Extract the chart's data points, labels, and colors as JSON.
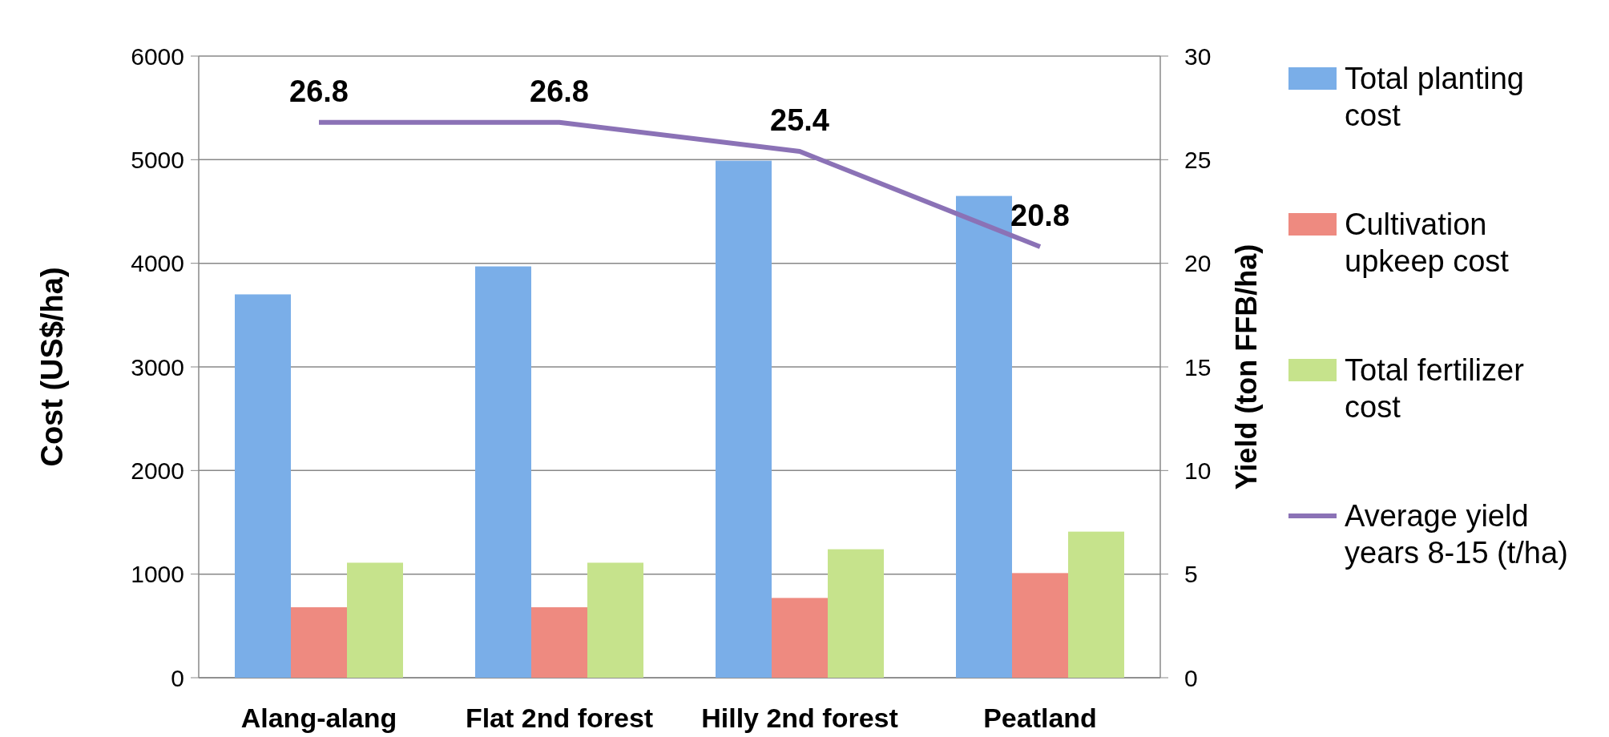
{
  "chart_data": {
    "type": "bar",
    "categories": [
      "Alang-alang",
      "Flat 2nd forest",
      "Hilly 2nd forest",
      "Peatland"
    ],
    "ylabel": "Cost (US$/ha)",
    "y2label": "Yield (ton FFB/ha)",
    "ylim": [
      0,
      6000
    ],
    "yticks": [
      0,
      1000,
      2000,
      3000,
      4000,
      5000,
      6000
    ],
    "y2lim": [
      0,
      30
    ],
    "y2ticks": [
      0,
      5,
      10,
      15,
      20,
      25,
      30
    ],
    "grid": "y",
    "legend": "right",
    "series": [
      {
        "name": "Total planting cost",
        "color": "#7aaee8",
        "values": [
          3700,
          3970,
          4990,
          4650
        ]
      },
      {
        "name": "Cultivation upkeep cost",
        "color": "#ee8a80",
        "values": [
          680,
          680,
          770,
          1010
        ]
      },
      {
        "name": "Total fertilizer cost",
        "color": "#c6e38c",
        "values": [
          1110,
          1110,
          1240,
          1410
        ]
      },
      {
        "name": "Average yield years 8-15 (t/ha)",
        "type": "line",
        "axis": "y2",
        "color": "#8b72b6",
        "marker": "none",
        "line_style": "solid",
        "data_labels": true,
        "values": [
          26.8,
          26.8,
          25.4,
          20.8
        ]
      }
    ]
  }
}
